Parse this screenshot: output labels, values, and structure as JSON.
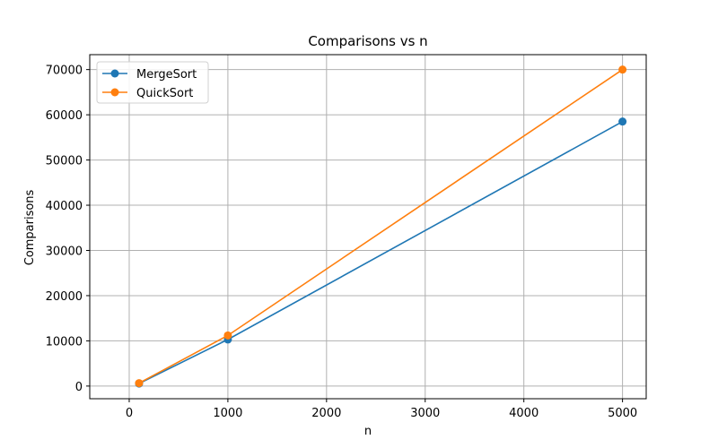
{
  "chart_data": {
    "type": "line",
    "title": "Comparisons vs n",
    "xlabel": "n",
    "ylabel": "Comparisons",
    "xlim": [
      -400,
      5240
    ],
    "ylim": [
      -2800,
      73300
    ],
    "xticks": [
      0,
      1000,
      2000,
      3000,
      4000,
      5000
    ],
    "yticks": [
      0,
      10000,
      20000,
      30000,
      40000,
      50000,
      60000,
      70000
    ],
    "grid": true,
    "legend_position": "top-left",
    "series": [
      {
        "name": "MergeSort",
        "color": "#1f77b4",
        "marker": "circle",
        "x": [
          100,
          1000,
          5000
        ],
        "y": [
          550,
          10300,
          58500
        ]
      },
      {
        "name": "QuickSort",
        "color": "#ff7f0e",
        "marker": "circle",
        "x": [
          100,
          1000,
          5000
        ],
        "y": [
          650,
          11200,
          70000
        ]
      }
    ]
  }
}
